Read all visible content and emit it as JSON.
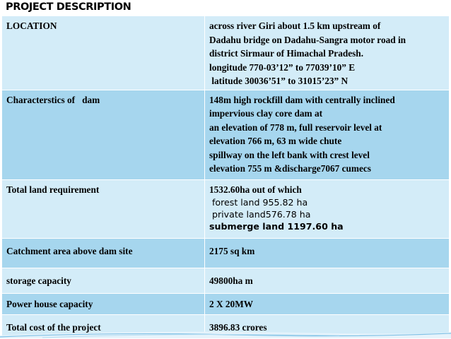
{
  "heading": "PROJECT DESCRIPTION",
  "rows": {
    "location": {
      "label": "LOCATION",
      "lines": [
        "across river Giri about 1.5 km upstream of",
        "Dadahu bridge on Dadahu-Sangra motor road in",
        "district Sirmaur of Himachal Pradesh.",
        "longitude 770-03’12” to 77039’10” E",
        " latitude 30036’51” to 31015’23” N"
      ]
    },
    "dam": {
      "label": "Characterstics of   dam",
      "lines": [
        "148m high rockfill dam with centrally inclined",
        "impervious clay core dam at",
        "an elevation of 778 m, full reservoir level at",
        "elevation 766 m, 63 m wide chute",
        "spillway on the left bank with crest level",
        "elevation 755 m &discharge7067 cumecs"
      ]
    },
    "land": {
      "label": "Total land requirement",
      "lines": [
        "1532.60ha out of which",
        " forest land 955.82 ha",
        " private land576.78 ha",
        "submerge land 1197.60 ha"
      ]
    },
    "catchment": {
      "label": "Catchment area above dam site",
      "value": "2175 sq km"
    },
    "storage": {
      "label": "storage capacity",
      "value": "49800ha m"
    },
    "power": {
      "label": "Power house capacity",
      "value": "2 X 20MW"
    },
    "cost": {
      "label": "Total cost of the project",
      "value": "3896.83 crores"
    }
  }
}
